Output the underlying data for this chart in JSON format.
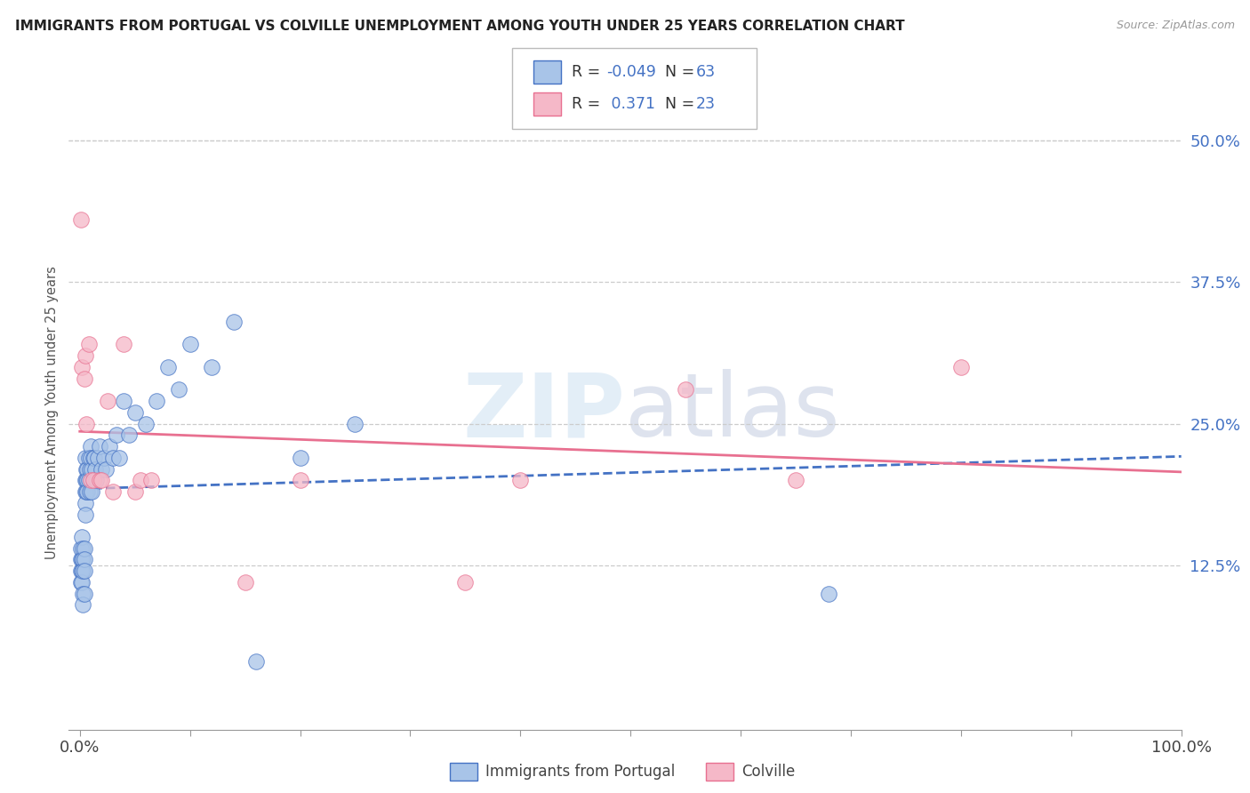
{
  "title": "IMMIGRANTS FROM PORTUGAL VS COLVILLE UNEMPLOYMENT AMONG YOUTH UNDER 25 YEARS CORRELATION CHART",
  "source": "Source: ZipAtlas.com",
  "ylabel": "Unemployment Among Youth under 25 years",
  "legend_r_blue": "-0.049",
  "legend_n_blue": "63",
  "legend_r_pink": "0.371",
  "legend_n_pink": "23",
  "blue_color": "#a8c4e8",
  "pink_color": "#f5b8c8",
  "blue_line_color": "#4472c4",
  "pink_line_color": "#e87090",
  "background_color": "#ffffff",
  "watermark_zip": "ZIP",
  "watermark_atlas": "atlas",
  "blue_x": [
    0.001,
    0.001,
    0.001,
    0.001,
    0.002,
    0.002,
    0.002,
    0.002,
    0.003,
    0.003,
    0.003,
    0.003,
    0.003,
    0.004,
    0.004,
    0.004,
    0.004,
    0.005,
    0.005,
    0.005,
    0.005,
    0.005,
    0.006,
    0.006,
    0.006,
    0.007,
    0.007,
    0.007,
    0.008,
    0.008,
    0.009,
    0.009,
    0.01,
    0.01,
    0.011,
    0.011,
    0.012,
    0.013,
    0.014,
    0.015,
    0.016,
    0.018,
    0.02,
    0.022,
    0.024,
    0.027,
    0.03,
    0.033,
    0.036,
    0.04,
    0.045,
    0.05,
    0.06,
    0.07,
    0.08,
    0.09,
    0.1,
    0.12,
    0.14,
    0.16,
    0.2,
    0.25,
    0.68
  ],
  "blue_y": [
    0.13,
    0.14,
    0.12,
    0.11,
    0.15,
    0.13,
    0.12,
    0.11,
    0.14,
    0.13,
    0.12,
    0.1,
    0.09,
    0.14,
    0.13,
    0.12,
    0.1,
    0.22,
    0.2,
    0.19,
    0.18,
    0.17,
    0.21,
    0.2,
    0.19,
    0.21,
    0.2,
    0.19,
    0.22,
    0.2,
    0.21,
    0.19,
    0.23,
    0.22,
    0.21,
    0.19,
    0.22,
    0.22,
    0.21,
    0.2,
    0.22,
    0.23,
    0.21,
    0.22,
    0.21,
    0.23,
    0.22,
    0.24,
    0.22,
    0.27,
    0.24,
    0.26,
    0.25,
    0.27,
    0.3,
    0.28,
    0.32,
    0.3,
    0.34,
    0.04,
    0.22,
    0.25,
    0.1
  ],
  "pink_x": [
    0.001,
    0.002,
    0.004,
    0.005,
    0.006,
    0.008,
    0.01,
    0.012,
    0.018,
    0.02,
    0.025,
    0.03,
    0.04,
    0.05,
    0.055,
    0.065,
    0.15,
    0.2,
    0.35,
    0.4,
    0.55,
    0.65,
    0.8
  ],
  "pink_y": [
    0.43,
    0.3,
    0.29,
    0.31,
    0.25,
    0.32,
    0.2,
    0.2,
    0.2,
    0.2,
    0.27,
    0.19,
    0.32,
    0.19,
    0.2,
    0.2,
    0.11,
    0.2,
    0.11,
    0.2,
    0.28,
    0.2,
    0.3
  ]
}
